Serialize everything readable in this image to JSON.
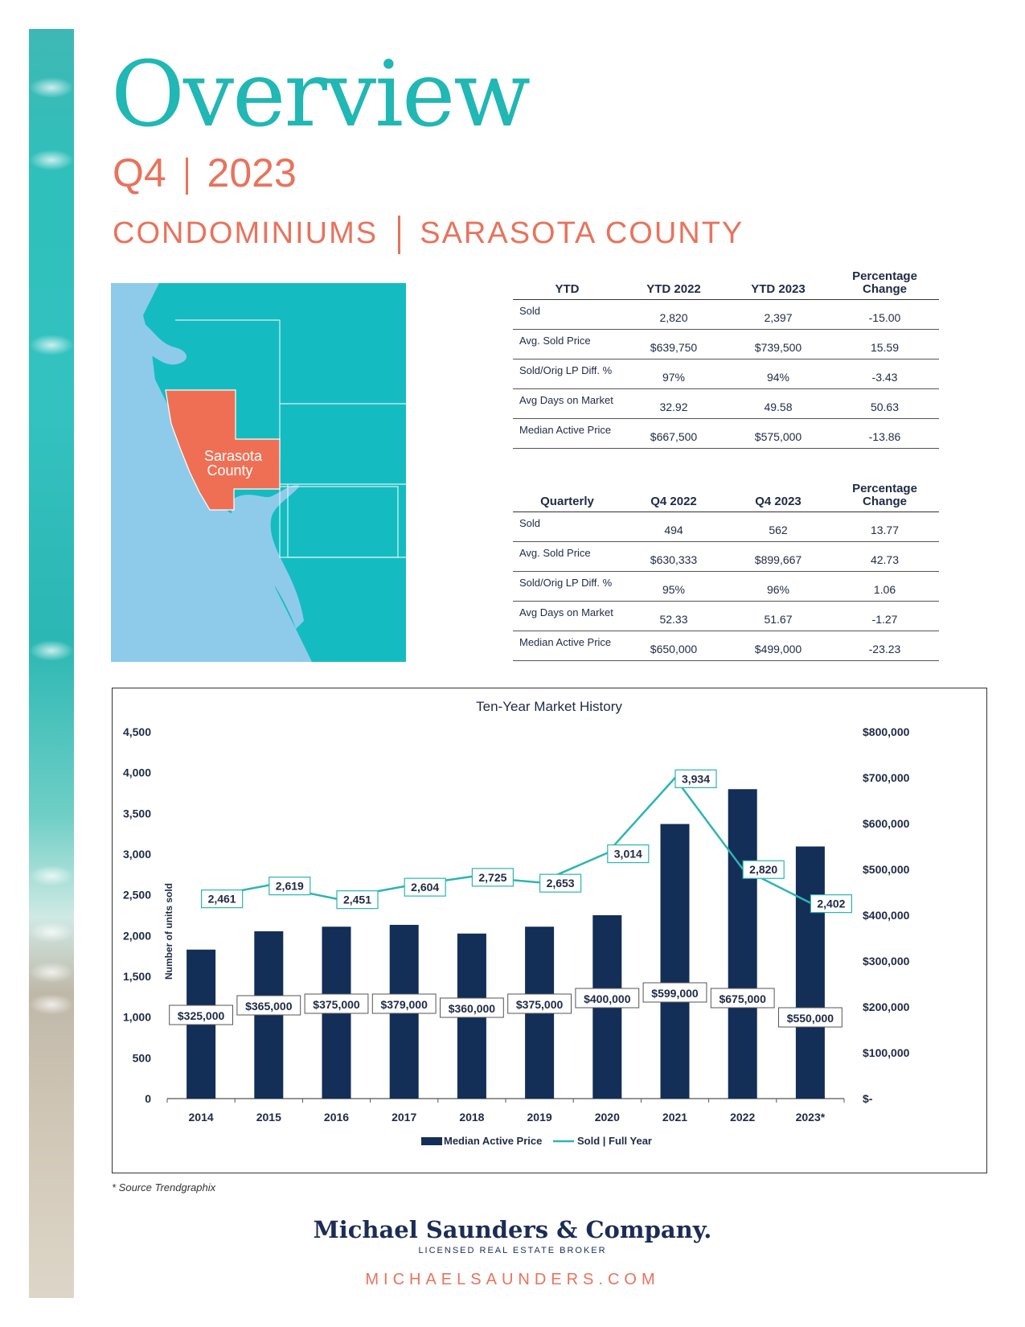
{
  "page": {
    "title": "Overview",
    "period_quarter": "Q4",
    "period_year": "2023",
    "segment": "CONDOMINIUMS",
    "region": "SARASOTA COUNTY"
  },
  "map": {
    "label_line1": "Sarasota",
    "label_line2": "County"
  },
  "ytd_table": {
    "headers": [
      "YTD",
      "YTD 2022",
      "YTD 2023",
      "Percentage",
      "Change"
    ],
    "rows": [
      [
        "Sold",
        "2,820",
        "2,397",
        "-15.00"
      ],
      [
        "Avg. Sold Price",
        "$639,750",
        "$739,500",
        "15.59"
      ],
      [
        "Sold/Orig LP Diff. %",
        "97%",
        "94%",
        "-3.43"
      ],
      [
        "Avg Days on Market",
        "32.92",
        "49.58",
        "50.63"
      ],
      [
        "Median Active Price",
        "$667,500",
        "$575,000",
        "-13.86"
      ]
    ]
  },
  "quarterly_table": {
    "headers": [
      "Quarterly",
      "Q4 2022",
      "Q4 2023",
      "Percentage",
      "Change"
    ],
    "rows": [
      [
        "Sold",
        "494",
        "562",
        "13.77"
      ],
      [
        "Avg. Sold Price",
        "$630,333",
        "$899,667",
        "42.73"
      ],
      [
        "Sold/Orig LP Diff. %",
        "95%",
        "96%",
        "1.06"
      ],
      [
        "Avg Days on Market",
        "52.33",
        "51.67",
        "-1.27"
      ],
      [
        "Median Active Price",
        "$650,000",
        "$499,000",
        "-23.23"
      ]
    ]
  },
  "chart_data": {
    "type": "bar",
    "title": "Ten-Year Market History",
    "ylabel": "Number of units sold",
    "categories": [
      "2014",
      "2015",
      "2016",
      "2017",
      "2018",
      "2019",
      "2020",
      "2021",
      "2022",
      "2023*"
    ],
    "series": [
      {
        "name": "Median Active Price",
        "kind": "bar",
        "axis": "right",
        "values": [
          325000,
          365000,
          375000,
          379000,
          360000,
          375000,
          400000,
          599000,
          675000,
          550000
        ],
        "labels": [
          "$325,000",
          "$365,000",
          "$375,000",
          "$379,000",
          "$360,000",
          "$375,000",
          "$400,000",
          "$599,000",
          "$675,000",
          "$550,000"
        ]
      },
      {
        "name": "Sold | Full Year",
        "kind": "line",
        "axis": "left",
        "values": [
          2461,
          2619,
          2451,
          2604,
          2725,
          2653,
          3014,
          3934,
          2820,
          2402
        ],
        "labels": [
          "2,461",
          "2,619",
          "2,451",
          "2,604",
          "2,725",
          "2,653",
          "3,014",
          "3,934",
          "2,820",
          "2,402"
        ]
      }
    ],
    "left_axis": {
      "ylim": [
        0,
        4500
      ],
      "ticks": [
        "0",
        "500",
        "1,000",
        "1,500",
        "2,000",
        "2,500",
        "3,000",
        "3,500",
        "4,000",
        "4,500"
      ]
    },
    "right_axis": {
      "ylim": [
        0,
        800000
      ],
      "ticks": [
        "$-",
        "$100,000",
        "$200,000",
        "$300,000",
        "$400,000",
        "$500,000",
        "$600,000",
        "$700,000",
        "$800,000"
      ]
    },
    "legend": [
      "Median Active Price",
      "Sold | Full Year"
    ],
    "legend_position": "bottom",
    "colors": {
      "bar": "#132e57",
      "line": "#2bb5b2"
    }
  },
  "footer": {
    "source_note": "* Source Trendgraphix",
    "brand": "Michael Saunders & Company.",
    "tagline": "LICENSED REAL ESTATE BROKER",
    "url": "MICHAELSAUNDERS.COM"
  }
}
